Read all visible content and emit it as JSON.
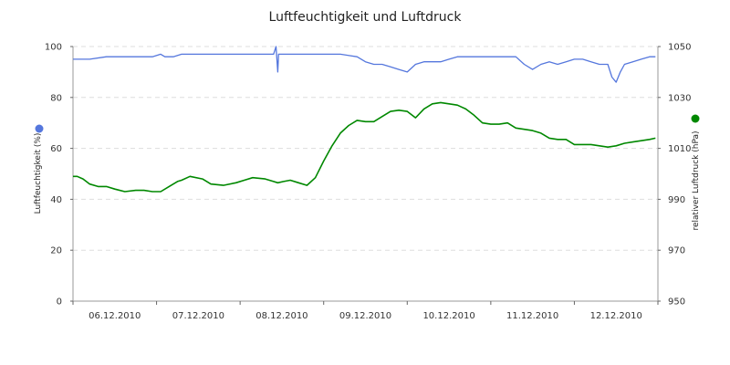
{
  "chart_data": {
    "type": "line",
    "title": "Luftfeuchtigkeit und Luftdruck",
    "x_categories": [
      "06.12.2010",
      "07.12.2010",
      "08.12.2010",
      "09.12.2010",
      "10.12.2010",
      "11.12.2010",
      "12.12.2010"
    ],
    "x_range_days": [
      0,
      7
    ],
    "y_left": {
      "label": "Luftfeuchtigkeit (%)",
      "range": [
        0,
        100
      ],
      "ticks": [
        0,
        20,
        40,
        60,
        80,
        100
      ]
    },
    "y_right": {
      "label": "relativer Luftdruck (hPa)",
      "range": [
        950,
        1050
      ],
      "ticks": [
        950,
        970,
        990,
        1010,
        1030,
        1050
      ]
    },
    "grid": true,
    "series": [
      {
        "name": "Luftfeuchtigkeit",
        "axis": "left",
        "color": "#008800",
        "marker_color": "#008800",
        "x": [
          0.0,
          0.05,
          0.12,
          0.2,
          0.3,
          0.4,
          0.5,
          0.62,
          0.75,
          0.85,
          0.95,
          1.05,
          1.15,
          1.25,
          1.3,
          1.4,
          1.55,
          1.65,
          1.8,
          1.95,
          2.05,
          2.15,
          2.3,
          2.4,
          2.45,
          2.52,
          2.6,
          2.7,
          2.8,
          2.9,
          3.0,
          3.1,
          3.2,
          3.3,
          3.4,
          3.5,
          3.6,
          3.7,
          3.8,
          3.9,
          4.0,
          4.1,
          4.2,
          4.3,
          4.4,
          4.5,
          4.6,
          4.7,
          4.8,
          4.9,
          5.0,
          5.1,
          5.2,
          5.3,
          5.4,
          5.5,
          5.6,
          5.7,
          5.8,
          5.9,
          6.0,
          6.1,
          6.2,
          6.3,
          6.4,
          6.5,
          6.6,
          6.7,
          6.8,
          6.9,
          6.97
        ],
        "values": [
          49,
          49,
          48,
          46,
          45,
          45,
          44,
          43,
          43.5,
          43.5,
          43,
          43,
          45,
          47,
          47.5,
          49,
          48,
          46,
          45.5,
          46.5,
          47.5,
          48.5,
          48,
          47,
          46.5,
          47,
          47.5,
          46.5,
          45.5,
          48.5,
          55,
          61,
          66,
          69,
          71,
          70.5,
          70.5,
          72.5,
          74.5,
          75,
          74.5,
          72,
          75.5,
          77.5,
          78,
          77.5,
          77,
          75.5,
          73,
          70,
          69.5,
          69.5,
          70,
          68,
          67.5,
          67,
          66,
          64,
          63.5,
          63.5,
          61.5,
          61.5,
          61.5,
          61,
          60.5,
          61,
          62,
          62.5,
          63,
          63.5,
          64
        ]
      },
      {
        "name": "Luftdruck",
        "axis": "right",
        "color": "#5577dd",
        "marker_color": "#5577dd",
        "x": [
          0.0,
          0.2,
          0.4,
          0.6,
          0.8,
          0.95,
          1.05,
          1.1,
          1.2,
          1.3,
          1.5,
          1.8,
          2.1,
          2.4,
          2.43,
          2.45,
          2.46,
          2.48,
          2.5,
          2.6,
          2.8,
          3.0,
          3.2,
          3.4,
          3.5,
          3.6,
          3.7,
          3.8,
          3.9,
          4.0,
          4.1,
          4.2,
          4.3,
          4.4,
          4.5,
          4.6,
          4.7,
          4.8,
          4.9,
          5.0,
          5.1,
          5.2,
          5.3,
          5.4,
          5.5,
          5.6,
          5.7,
          5.8,
          5.9,
          6.0,
          6.1,
          6.2,
          6.3,
          6.4,
          6.45,
          6.5,
          6.55,
          6.6,
          6.7,
          6.8,
          6.9,
          6.97
        ],
        "values": [
          1045,
          1045,
          1046,
          1046,
          1046,
          1046,
          1047,
          1046,
          1046,
          1047,
          1047,
          1047,
          1047,
          1047,
          1050,
          1040,
          1047,
          1047,
          1047,
          1047,
          1047,
          1047,
          1047,
          1046,
          1044,
          1043,
          1043,
          1042,
          1041,
          1040,
          1043,
          1044,
          1044,
          1044,
          1045,
          1046,
          1046,
          1046,
          1046,
          1046,
          1046,
          1046,
          1046,
          1043,
          1041,
          1043,
          1044,
          1043,
          1044,
          1045,
          1045,
          1044,
          1043,
          1043,
          1038,
          1036,
          1040,
          1043,
          1044,
          1045,
          1046,
          1046
        ]
      }
    ]
  }
}
